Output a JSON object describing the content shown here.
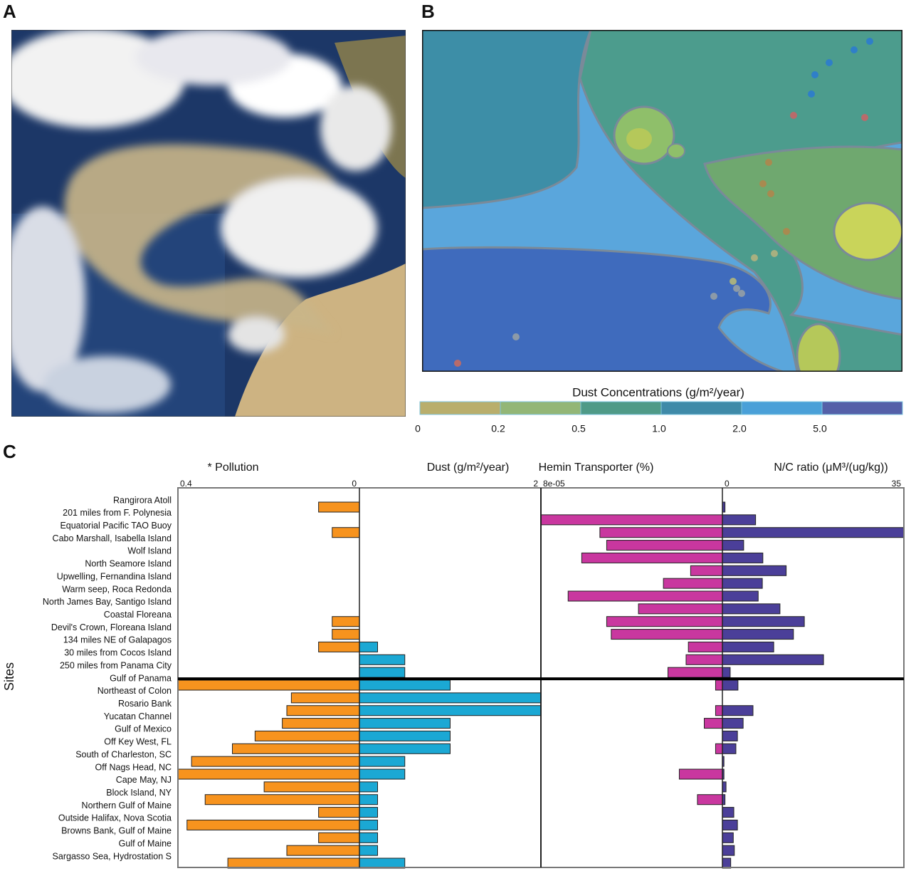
{
  "panel_labels": [
    "A",
    "B",
    "C"
  ],
  "map_legend": {
    "title": "Dust Concentrations (g/m²/year)",
    "labels": [
      "0",
      "0.2",
      "0.5",
      "1.0",
      "2.0",
      "5.0"
    ],
    "colors": [
      "#b9ae6c",
      "#93b676",
      "#4f9a87",
      "#3f8aa8",
      "#4aa0d8",
      "#5460a8"
    ]
  },
  "y_label": "Sites",
  "chart_data": [
    {
      "type": "hbar",
      "title": "* Pollution",
      "color": "#f7931e",
      "categories": [
        "Rangirora Atoll",
        "201 miles from F. Polynesia",
        "Equatorial Pacific TAO Buoy",
        "Cabo Marshall, Isabella Island",
        "Wolf Island",
        "North Seamore Island",
        "Upwelling, Fernandina Island",
        "Warm seep, Roca Redonda",
        "North James Bay, Santigo Island",
        "Coastal Floreana",
        "Devil's Crown, Floreana Island",
        "134 miles NE of Galapagos",
        "30 miles from Cocos Island",
        "250 miles from Panama City",
        "Gulf of Panama",
        "Northeast of Colon",
        "Rosario Bank",
        "Yucatan Channel",
        "Gulf of Mexico",
        "Off Key West, FL",
        "South of Charleston, SC",
        "Off Nags Head, NC",
        "Cape May, NJ",
        "Block Island, NY",
        "Northern Gulf of Maine",
        "Outside Halifax, Nova Scotia",
        "Browns Bank, Gulf of Maine",
        "Gulf of Maine",
        "Sargasso Sea, Hydrostation S"
      ],
      "values": [
        0.09,
        null,
        0.06,
        null,
        null,
        null,
        null,
        null,
        null,
        0.06,
        0.06,
        0.09,
        null,
        null,
        0.4,
        0.15,
        0.16,
        0.17,
        0.23,
        0.28,
        0.37,
        0.4,
        0.21,
        0.34,
        0.09,
        0.38,
        0.09,
        0.16,
        0.29
      ],
      "xlim": [
        0.4,
        0
      ],
      "xticks": [
        0.4,
        0
      ]
    },
    {
      "type": "hbar",
      "title": "Dust (g/m²/year)",
      "color": "#1ba8d4",
      "values": [
        null,
        null,
        null,
        null,
        null,
        null,
        null,
        null,
        null,
        null,
        null,
        0.2,
        0.5,
        0.5,
        1.0,
        2.0,
        2.0,
        1.0,
        1.0,
        1.0,
        0.5,
        0.5,
        0.2,
        0.2,
        0.2,
        0.2,
        0.2,
        0.2,
        0.5
      ],
      "xlim": [
        0,
        2
      ],
      "xticks": [
        2
      ]
    },
    {
      "type": "hbar",
      "title": "Hemin Transporter (%)",
      "color": "#c9379f",
      "values": [
        null,
        8e-05,
        5.4e-05,
        5.1e-05,
        6.2e-05,
        1.4e-05,
        2.6e-05,
        6.8e-05,
        3.7e-05,
        5.1e-05,
        4.9e-05,
        1.5e-05,
        1.6e-05,
        2.4e-05,
        3e-06,
        null,
        3e-06,
        8e-06,
        null,
        3e-06,
        null,
        1.9e-05,
        null,
        1.1e-05,
        null,
        null,
        null,
        null,
        null
      ],
      "xlim": [
        8e-05,
        0
      ],
      "xticks": [
        {
          "value": 8e-05,
          "label": "8e-05"
        }
      ]
    },
    {
      "type": "hbar",
      "title": "N/C ratio (μM³/(ug/kg))",
      "color": "#4b3f99",
      "values": [
        0.5,
        6.4,
        35,
        4.1,
        7.8,
        12.3,
        7.7,
        6.9,
        11.1,
        15.8,
        13.7,
        9.9,
        19.5,
        1.5,
        3.0,
        null,
        5.9,
        4.0,
        2.9,
        2.6,
        0.3,
        0.3,
        0.7,
        0.5,
        2.2,
        2.9,
        2.1,
        2.3,
        1.6
      ],
      "xlim": [
        0,
        35
      ],
      "xticks": [
        0,
        35
      ]
    }
  ]
}
